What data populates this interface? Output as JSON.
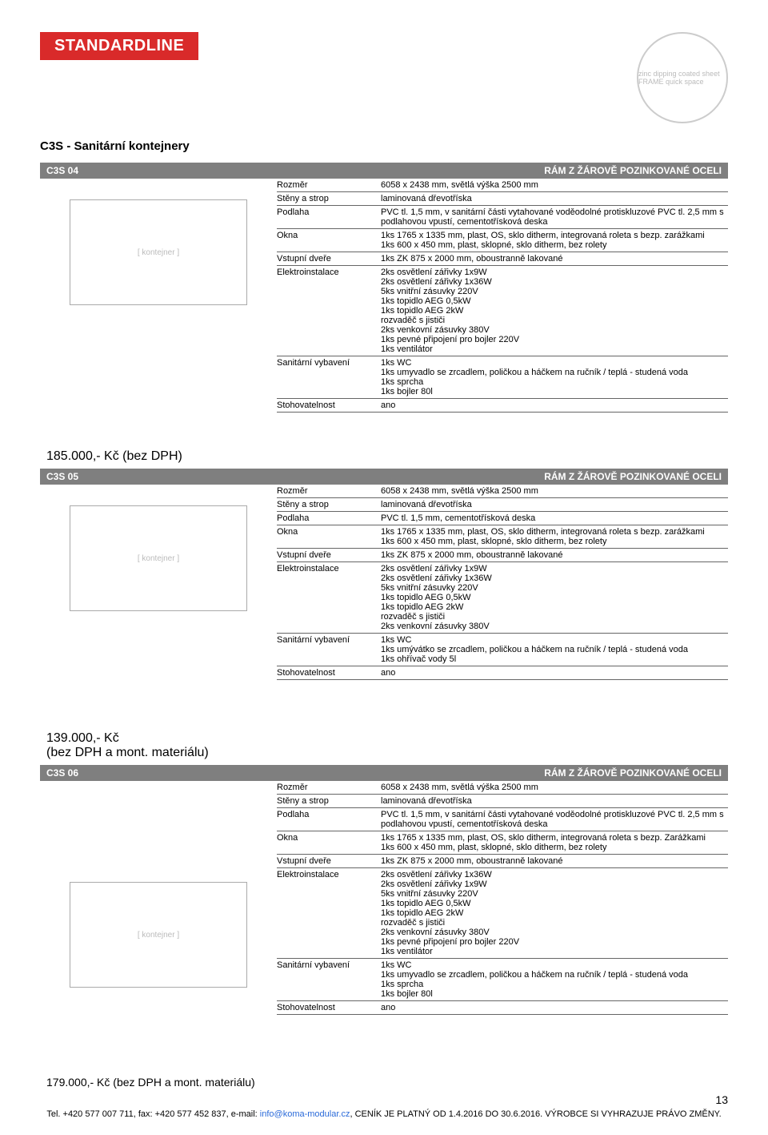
{
  "brand": "STANDARDLINE",
  "stamp_text": "zinc dipping coated sheet FRAME quick space",
  "page_title": "C3S - Sanitární kontejnery",
  "products": [
    {
      "code": "C3S 04",
      "frame": "RÁM Z ŽÁROVĚ POZINKOVANÉ OCELI",
      "price": "185.000,- Kč (bez DPH)",
      "rows": [
        {
          "k": "Rozměr",
          "v": "6058 x 2438 mm, světlá výška 2500 mm"
        },
        {
          "k": "Stěny a strop",
          "v": "laminovaná dřevotříska"
        },
        {
          "k": "Podlaha",
          "v": "PVC tl. 1,5 mm, v sanitární části vytahované voděodolné protiskluzové PVC tl. 2,5 mm s podlahovou vpustí, cementotřísková deska"
        },
        {
          "k": "Okna",
          "v": "1ks 1765 x 1335 mm, plast, OS, sklo ditherm, integrovaná roleta s bezp. zarážkami\n1ks 600 x 450 mm, plast, sklopné, sklo ditherm, bez rolety"
        },
        {
          "k": "Vstupní dveře",
          "v": "1ks ZK 875 x 2000 mm, oboustranně lakované"
        },
        {
          "k": "Elektroinstalace",
          "v": "2ks osvětlení zářivky 1x9W\n2ks osvětlení zářivky 1x36W\n5ks vnitřní zásuvky 220V\n1ks topidlo AEG 0,5kW\n1ks topidlo AEG 2kW\nrozvaděč s jističi\n2ks venkovní zásuvky 380V\n1ks pevné připojení pro bojler 220V\n1ks ventilátor"
        },
        {
          "k": "Sanitární vybavení",
          "v": "1ks WC\n1ks umyvadlo se zrcadlem, poličkou a háčkem na ručník / teplá - studená voda\n1ks sprcha\n1ks bojler 80l"
        },
        {
          "k": "Stohovatelnost",
          "v": "ano"
        }
      ]
    },
    {
      "code": "C3S 05",
      "frame": "RÁM Z ŽÁROVĚ POZINKOVANÉ OCELI",
      "price_a": "139.000,- Kč",
      "price_b": "(bez DPH a mont. materiálu)",
      "rows": [
        {
          "k": "Rozměr",
          "v": "6058 x 2438 mm, světlá výška 2500 mm"
        },
        {
          "k": "Stěny a strop",
          "v": "laminovaná dřevotříska"
        },
        {
          "k": "Podlaha",
          "v": "PVC tl. 1,5 mm, cementotřísková deska"
        },
        {
          "k": "Okna",
          "v": "1ks 1765 x 1335 mm, plast, OS, sklo ditherm, integrovaná roleta s bezp. zarážkami\n1ks 600 x 450 mm, plast, sklopné, sklo ditherm, bez rolety"
        },
        {
          "k": "Vstupní dveře",
          "v": "1ks ZK 875 x 2000 mm, oboustranně lakované"
        },
        {
          "k": "Elektroinstalace",
          "v": "2ks osvětlení zářivky 1x9W\n2ks osvětlení zářivky 1x36W\n5ks vnitřní zásuvky 220V\n1ks topidlo AEG 0,5kW\n1ks topidlo AEG 2kW\nrozvaděč s jističi\n2ks venkovní zásuvky 380V"
        },
        {
          "k": "Sanitární vybavení",
          "v": "1ks WC\n1ks umývátko se zrcadlem, poličkou a háčkem na ručník / teplá - studená voda\n1ks ohřívač vody 5l"
        },
        {
          "k": "Stohovatelnost",
          "v": "ano"
        }
      ]
    },
    {
      "code": "C3S 06",
      "frame": "RÁM Z ŽÁROVĚ POZINKOVANÉ OCELI",
      "price": "179.000,- Kč (bez DPH a mont. materiálu)",
      "rows": [
        {
          "k": "Rozměr",
          "v": "6058 x 2438 mm, světlá výška 2500 mm"
        },
        {
          "k": "Stěny a strop",
          "v": "laminovaná dřevotříska"
        },
        {
          "k": "Podlaha",
          "v": "PVC tl. 1,5 mm, v sanitární části vytahované voděodolné protiskluzové PVC tl. 2,5 mm s podlahovou vpustí, cementotřísková deska"
        },
        {
          "k": "Okna",
          "v": "1ks 1765 x 1335 mm, plast, OS, sklo ditherm, integrovaná roleta s bezp. Zarážkami\n1ks 600 x 450 mm, plast, sklopné, sklo ditherm, bez rolety"
        },
        {
          "k": "Vstupní dveře",
          "v": "1ks ZK 875 x 2000 mm, oboustranně lakované"
        },
        {
          "k": "Elektroinstalace",
          "v": "2ks osvětlení zářivky 1x36W\n2ks osvětlení zářivky 1x9W\n5ks vnitřní zásuvky 220V\n1ks topidlo AEG 0,5kW\n1ks topidlo AEG 2kW\nrozvaděč s jističi\n2ks venkovní zásuvky 380V\n1ks pevné připojení pro bojler 220V\n1ks ventilátor"
        },
        {
          "k": "Sanitární vybavení",
          "v": "1ks WC\n1ks umyvadlo se zrcadlem, poličkou a háčkem na ručník / teplá - studená voda\n1ks sprcha\n1ks bojler 80l"
        },
        {
          "k": "Stohovatelnost",
          "v": "ano"
        }
      ]
    }
  ],
  "footer": {
    "tel": "Tel. +420 577 007 711, fax: +420 577 452 837, e-mail: ",
    "email": "info@koma-modular.cz",
    "rest": ", CENÍK JE PLATNÝ OD 1.4.2016 DO 30.6.2016. VÝROBCE SI VYHRAZUJE PRÁVO ZMĚNY.",
    "page": "13"
  }
}
